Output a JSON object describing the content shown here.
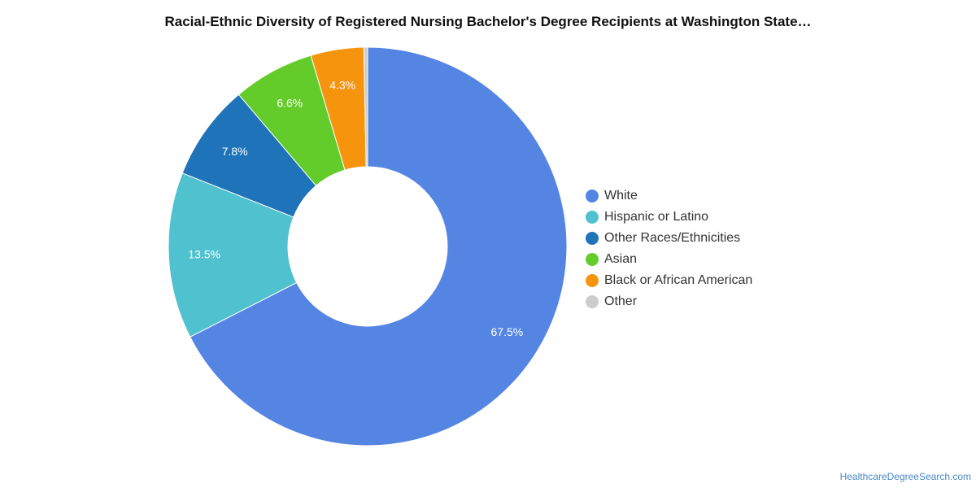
{
  "chart_data": {
    "type": "pie",
    "donut": true,
    "title": "Racial-Ethnic Diversity of Registered Nursing Bachelor's Degree Recipients at Washington State…",
    "unit": "%",
    "series": [
      {
        "name": "White",
        "value": 67.5,
        "label": "67.5%",
        "color": "#5585e3"
      },
      {
        "name": "Hispanic or Latino",
        "value": 13.5,
        "label": "13.5%",
        "color": "#50c1ce"
      },
      {
        "name": "Other Races/Ethnicities",
        "value": 7.8,
        "label": "7.8%",
        "color": "#1f73b8"
      },
      {
        "name": "Asian",
        "value": 6.6,
        "label": "6.6%",
        "color": "#63cc2a"
      },
      {
        "name": "Black or African American",
        "value": 4.3,
        "label": "4.3%",
        "color": "#f7940d"
      },
      {
        "name": "Other",
        "value": 0.3,
        "label": "",
        "color": "#cccccc"
      }
    ],
    "legend_position": "right"
  },
  "credit": {
    "text": "HealthcareDegreeSearch.com",
    "color": "#4a86c8"
  }
}
